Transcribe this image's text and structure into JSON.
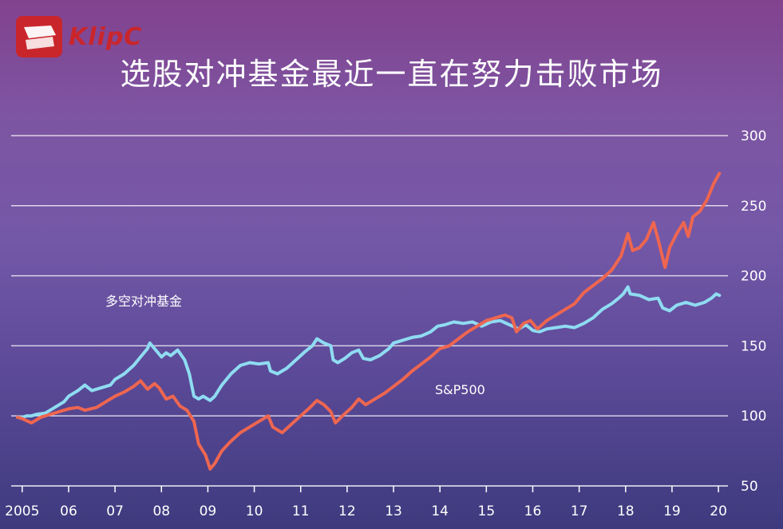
{
  "title": "选股对冲基金最近一直在努力击败市场",
  "logo": {
    "text": "KlipC"
  },
  "colors": {
    "hedge": "#8fdcf2",
    "sp500": "#ee6650",
    "grid": "#ffffff"
  },
  "chart_data": {
    "type": "line",
    "title": "选股对冲基金最近一直在努力击败市场",
    "xlabel": "",
    "ylabel": "",
    "x_ticks": [
      "2005",
      "06",
      "07",
      "08",
      "09",
      "10",
      "11",
      "12",
      "13",
      "14",
      "15",
      "16",
      "17",
      "18",
      "19",
      "20"
    ],
    "y_ticks": [
      50,
      100,
      150,
      200,
      250,
      300
    ],
    "xlim": [
      2004.9,
      2020.05
    ],
    "ylim": [
      50,
      300
    ],
    "grid": true,
    "series": [
      {
        "name": "多空对冲基金",
        "color": "#8fdcf2",
        "points": [
          [
            2004.9,
            99
          ],
          [
            2005.0,
            99
          ],
          [
            2005.1,
            100
          ],
          [
            2005.2,
            100
          ],
          [
            2005.3,
            101
          ],
          [
            2005.5,
            102
          ],
          [
            2005.7,
            106
          ],
          [
            2005.9,
            110
          ],
          [
            2006.0,
            114
          ],
          [
            2006.2,
            118
          ],
          [
            2006.35,
            122
          ],
          [
            2006.5,
            118
          ],
          [
            2006.7,
            120
          ],
          [
            2006.9,
            122
          ],
          [
            2007.0,
            126
          ],
          [
            2007.2,
            130
          ],
          [
            2007.4,
            136
          ],
          [
            2007.6,
            144
          ],
          [
            2007.7,
            148
          ],
          [
            2007.75,
            152
          ],
          [
            2007.9,
            146
          ],
          [
            2008.0,
            142
          ],
          [
            2008.1,
            145
          ],
          [
            2008.2,
            143
          ],
          [
            2008.35,
            147
          ],
          [
            2008.5,
            140
          ],
          [
            2008.6,
            130
          ],
          [
            2008.7,
            114
          ],
          [
            2008.8,
            112
          ],
          [
            2008.9,
            114
          ],
          [
            2009.05,
            111
          ],
          [
            2009.15,
            114
          ],
          [
            2009.3,
            122
          ],
          [
            2009.5,
            130
          ],
          [
            2009.7,
            136
          ],
          [
            2009.9,
            138
          ],
          [
            2010.1,
            137
          ],
          [
            2010.3,
            138
          ],
          [
            2010.35,
            132
          ],
          [
            2010.5,
            130
          ],
          [
            2010.7,
            134
          ],
          [
            2010.9,
            140
          ],
          [
            2011.1,
            146
          ],
          [
            2011.25,
            150
          ],
          [
            2011.35,
            155
          ],
          [
            2011.5,
            152
          ],
          [
            2011.65,
            150
          ],
          [
            2011.7,
            140
          ],
          [
            2011.8,
            138
          ],
          [
            2011.95,
            141
          ],
          [
            2012.1,
            145
          ],
          [
            2012.25,
            147
          ],
          [
            2012.35,
            141
          ],
          [
            2012.5,
            140
          ],
          [
            2012.7,
            143
          ],
          [
            2012.9,
            148
          ],
          [
            2013.0,
            152
          ],
          [
            2013.2,
            154
          ],
          [
            2013.4,
            156
          ],
          [
            2013.6,
            157
          ],
          [
            2013.8,
            160
          ],
          [
            2013.95,
            164
          ],
          [
            2014.1,
            165
          ],
          [
            2014.3,
            167
          ],
          [
            2014.5,
            166
          ],
          [
            2014.7,
            167
          ],
          [
            2014.9,
            164
          ],
          [
            2015.1,
            167
          ],
          [
            2015.3,
            168
          ],
          [
            2015.5,
            165
          ],
          [
            2015.7,
            162
          ],
          [
            2015.85,
            165
          ],
          [
            2016.0,
            161
          ],
          [
            2016.15,
            160
          ],
          [
            2016.3,
            162
          ],
          [
            2016.5,
            163
          ],
          [
            2016.7,
            164
          ],
          [
            2016.9,
            163
          ],
          [
            2017.1,
            166
          ],
          [
            2017.3,
            170
          ],
          [
            2017.5,
            176
          ],
          [
            2017.7,
            180
          ],
          [
            2017.85,
            184
          ],
          [
            2017.95,
            187
          ],
          [
            2018.05,
            192
          ],
          [
            2018.1,
            187
          ],
          [
            2018.3,
            186
          ],
          [
            2018.5,
            183
          ],
          [
            2018.7,
            184
          ],
          [
            2018.8,
            177
          ],
          [
            2018.95,
            175
          ],
          [
            2019.1,
            179
          ],
          [
            2019.3,
            181
          ],
          [
            2019.5,
            179
          ],
          [
            2019.7,
            181
          ],
          [
            2019.85,
            184
          ],
          [
            2019.95,
            187
          ],
          [
            2020.02,
            186
          ]
        ]
      },
      {
        "name": "S&P500",
        "color": "#ee6650",
        "points": [
          [
            2004.9,
            99
          ],
          [
            2005.0,
            98
          ],
          [
            2005.2,
            95
          ],
          [
            2005.4,
            99
          ],
          [
            2005.6,
            101
          ],
          [
            2005.8,
            103
          ],
          [
            2006.0,
            105
          ],
          [
            2006.2,
            106
          ],
          [
            2006.35,
            104
          ],
          [
            2006.6,
            106
          ],
          [
            2006.8,
            110
          ],
          [
            2007.0,
            114
          ],
          [
            2007.2,
            117
          ],
          [
            2007.4,
            121
          ],
          [
            2007.55,
            125
          ],
          [
            2007.7,
            119
          ],
          [
            2007.85,
            123
          ],
          [
            2007.95,
            120
          ],
          [
            2008.1,
            112
          ],
          [
            2008.25,
            114
          ],
          [
            2008.4,
            107
          ],
          [
            2008.55,
            104
          ],
          [
            2008.7,
            96
          ],
          [
            2008.8,
            80
          ],
          [
            2008.95,
            72
          ],
          [
            2009.05,
            62
          ],
          [
            2009.15,
            66
          ],
          [
            2009.3,
            75
          ],
          [
            2009.5,
            82
          ],
          [
            2009.7,
            88
          ],
          [
            2009.9,
            92
          ],
          [
            2010.1,
            96
          ],
          [
            2010.3,
            100
          ],
          [
            2010.4,
            92
          ],
          [
            2010.6,
            88
          ],
          [
            2010.8,
            94
          ],
          [
            2011.0,
            100
          ],
          [
            2011.2,
            106
          ],
          [
            2011.35,
            111
          ],
          [
            2011.5,
            108
          ],
          [
            2011.65,
            103
          ],
          [
            2011.75,
            95
          ],
          [
            2011.9,
            100
          ],
          [
            2012.1,
            106
          ],
          [
            2012.25,
            112
          ],
          [
            2012.4,
            108
          ],
          [
            2012.6,
            112
          ],
          [
            2012.8,
            116
          ],
          [
            2013.0,
            121
          ],
          [
            2013.2,
            126
          ],
          [
            2013.4,
            132
          ],
          [
            2013.6,
            137
          ],
          [
            2013.8,
            142
          ],
          [
            2014.0,
            148
          ],
          [
            2014.2,
            150
          ],
          [
            2014.4,
            155
          ],
          [
            2014.6,
            160
          ],
          [
            2014.8,
            164
          ],
          [
            2015.0,
            168
          ],
          [
            2015.2,
            170
          ],
          [
            2015.4,
            172
          ],
          [
            2015.55,
            170
          ],
          [
            2015.65,
            160
          ],
          [
            2015.8,
            166
          ],
          [
            2015.95,
            168
          ],
          [
            2016.1,
            162
          ],
          [
            2016.3,
            168
          ],
          [
            2016.5,
            172
          ],
          [
            2016.7,
            176
          ],
          [
            2016.9,
            180
          ],
          [
            2017.1,
            188
          ],
          [
            2017.3,
            193
          ],
          [
            2017.5,
            198
          ],
          [
            2017.7,
            204
          ],
          [
            2017.9,
            214
          ],
          [
            2018.05,
            230
          ],
          [
            2018.15,
            218
          ],
          [
            2018.3,
            220
          ],
          [
            2018.45,
            226
          ],
          [
            2018.6,
            238
          ],
          [
            2018.7,
            226
          ],
          [
            2018.85,
            206
          ],
          [
            2018.95,
            220
          ],
          [
            2019.1,
            230
          ],
          [
            2019.25,
            238
          ],
          [
            2019.35,
            228
          ],
          [
            2019.45,
            242
          ],
          [
            2019.6,
            246
          ],
          [
            2019.75,
            254
          ],
          [
            2019.9,
            266
          ],
          [
            2020.02,
            273
          ]
        ]
      }
    ]
  }
}
